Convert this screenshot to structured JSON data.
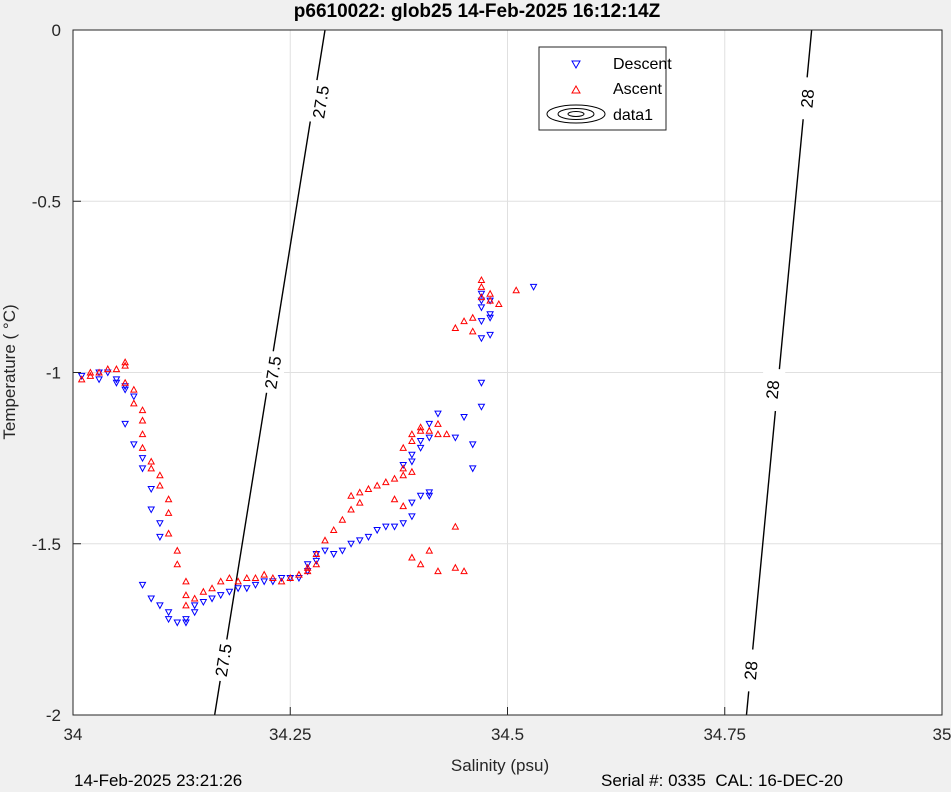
{
  "chart_data": {
    "type": "scatter",
    "title": "p6610022: glob25 14-Feb-2025 16:12:14Z",
    "xlabel": "Salinity (psu)",
    "ylabel": "Temperature (   °C)",
    "xlim": [
      34,
      35
    ],
    "ylim": [
      -2,
      0
    ],
    "xticks": [
      34,
      34.25,
      34.5,
      34.75,
      35
    ],
    "xtick_labels": [
      "34",
      "34.25",
      "34.5",
      "34.75",
      "35"
    ],
    "yticks": [
      0,
      -0.5,
      -1,
      -1.5,
      -2
    ],
    "ytick_labels": [
      "0",
      "-0.5",
      "-1",
      "-1.5",
      "-2"
    ],
    "grid": true,
    "legend_position": "top-right",
    "series": [
      {
        "name": "Descent",
        "color": "#0000ff",
        "marker": "triangle-down",
        "points": [
          [
            34.01,
            -1.01
          ],
          [
            34.03,
            -1.02
          ],
          [
            34.03,
            -1.0
          ],
          [
            34.04,
            -1.0
          ],
          [
            34.05,
            -1.02
          ],
          [
            34.05,
            -1.03
          ],
          [
            34.06,
            -1.04
          ],
          [
            34.06,
            -1.05
          ],
          [
            34.07,
            -1.07
          ],
          [
            34.06,
            -1.15
          ],
          [
            34.07,
            -1.21
          ],
          [
            34.08,
            -1.25
          ],
          [
            34.08,
            -1.28
          ],
          [
            34.09,
            -1.34
          ],
          [
            34.09,
            -1.4
          ],
          [
            34.1,
            -1.44
          ],
          [
            34.1,
            -1.48
          ],
          [
            34.08,
            -1.62
          ],
          [
            34.09,
            -1.66
          ],
          [
            34.1,
            -1.68
          ],
          [
            34.11,
            -1.7
          ],
          [
            34.11,
            -1.72
          ],
          [
            34.12,
            -1.73
          ],
          [
            34.13,
            -1.73
          ],
          [
            34.13,
            -1.72
          ],
          [
            34.14,
            -1.7
          ],
          [
            34.14,
            -1.68
          ],
          [
            34.15,
            -1.67
          ],
          [
            34.16,
            -1.66
          ],
          [
            34.17,
            -1.65
          ],
          [
            34.18,
            -1.64
          ],
          [
            34.19,
            -1.63
          ],
          [
            34.2,
            -1.63
          ],
          [
            34.21,
            -1.62
          ],
          [
            34.22,
            -1.61
          ],
          [
            34.23,
            -1.61
          ],
          [
            34.24,
            -1.6
          ],
          [
            34.25,
            -1.6
          ],
          [
            34.26,
            -1.6
          ],
          [
            34.27,
            -1.58
          ],
          [
            34.27,
            -1.56
          ],
          [
            34.28,
            -1.55
          ],
          [
            34.28,
            -1.53
          ],
          [
            34.29,
            -1.52
          ],
          [
            34.3,
            -1.53
          ],
          [
            34.31,
            -1.52
          ],
          [
            34.32,
            -1.5
          ],
          [
            34.33,
            -1.49
          ],
          [
            34.34,
            -1.48
          ],
          [
            34.35,
            -1.46
          ],
          [
            34.36,
            -1.45
          ],
          [
            34.37,
            -1.45
          ],
          [
            34.38,
            -1.44
          ],
          [
            34.39,
            -1.42
          ],
          [
            34.39,
            -1.38
          ],
          [
            34.4,
            -1.36
          ],
          [
            34.41,
            -1.36
          ],
          [
            34.41,
            -1.35
          ],
          [
            34.38,
            -1.27
          ],
          [
            34.39,
            -1.26
          ],
          [
            34.39,
            -1.24
          ],
          [
            34.4,
            -1.22
          ],
          [
            34.4,
            -1.2
          ],
          [
            34.41,
            -1.19
          ],
          [
            34.41,
            -1.15
          ],
          [
            34.42,
            -1.12
          ],
          [
            34.44,
            -1.19
          ],
          [
            34.45,
            -1.13
          ],
          [
            34.46,
            -1.21
          ],
          [
            34.46,
            -1.28
          ],
          [
            34.47,
            -1.1
          ],
          [
            34.47,
            -1.03
          ],
          [
            34.47,
            -0.9
          ],
          [
            34.47,
            -0.85
          ],
          [
            34.47,
            -0.81
          ],
          [
            34.47,
            -0.79
          ],
          [
            34.47,
            -0.77
          ],
          [
            34.48,
            -0.79
          ],
          [
            34.48,
            -0.83
          ],
          [
            34.48,
            -0.84
          ],
          [
            34.48,
            -0.89
          ],
          [
            34.53,
            -0.75
          ]
        ]
      },
      {
        "name": "Ascent",
        "color": "#ff0000",
        "marker": "triangle-up",
        "points": [
          [
            34.01,
            -1.02
          ],
          [
            34.02,
            -1.01
          ],
          [
            34.02,
            -1.0
          ],
          [
            34.03,
            -1.0
          ],
          [
            34.04,
            -0.99
          ],
          [
            34.05,
            -0.99
          ],
          [
            34.06,
            -0.98
          ],
          [
            34.06,
            -0.97
          ],
          [
            34.06,
            -1.03
          ],
          [
            34.07,
            -1.05
          ],
          [
            34.07,
            -1.09
          ],
          [
            34.08,
            -1.11
          ],
          [
            34.08,
            -1.14
          ],
          [
            34.08,
            -1.18
          ],
          [
            34.08,
            -1.22
          ],
          [
            34.09,
            -1.26
          ],
          [
            34.09,
            -1.28
          ],
          [
            34.1,
            -1.3
          ],
          [
            34.1,
            -1.33
          ],
          [
            34.11,
            -1.37
          ],
          [
            34.11,
            -1.41
          ],
          [
            34.11,
            -1.47
          ],
          [
            34.12,
            -1.52
          ],
          [
            34.12,
            -1.56
          ],
          [
            34.13,
            -1.61
          ],
          [
            34.13,
            -1.65
          ],
          [
            34.13,
            -1.68
          ],
          [
            34.14,
            -1.66
          ],
          [
            34.15,
            -1.64
          ],
          [
            34.16,
            -1.63
          ],
          [
            34.17,
            -1.61
          ],
          [
            34.18,
            -1.6
          ],
          [
            34.19,
            -1.61
          ],
          [
            34.2,
            -1.6
          ],
          [
            34.21,
            -1.6
          ],
          [
            34.22,
            -1.59
          ],
          [
            34.23,
            -1.6
          ],
          [
            34.24,
            -1.61
          ],
          [
            34.25,
            -1.6
          ],
          [
            34.26,
            -1.59
          ],
          [
            34.27,
            -1.58
          ],
          [
            34.27,
            -1.57
          ],
          [
            34.28,
            -1.56
          ],
          [
            34.28,
            -1.53
          ],
          [
            34.29,
            -1.49
          ],
          [
            34.3,
            -1.46
          ],
          [
            34.31,
            -1.43
          ],
          [
            34.32,
            -1.4
          ],
          [
            34.33,
            -1.38
          ],
          [
            34.32,
            -1.36
          ],
          [
            34.33,
            -1.35
          ],
          [
            34.34,
            -1.34
          ],
          [
            34.35,
            -1.33
          ],
          [
            34.36,
            -1.32
          ],
          [
            34.37,
            -1.31
          ],
          [
            34.38,
            -1.3
          ],
          [
            34.38,
            -1.28
          ],
          [
            34.39,
            -1.29
          ],
          [
            34.37,
            -1.37
          ],
          [
            34.38,
            -1.39
          ],
          [
            34.38,
            -1.22
          ],
          [
            34.39,
            -1.2
          ],
          [
            34.39,
            -1.18
          ],
          [
            34.4,
            -1.17
          ],
          [
            34.4,
            -1.16
          ],
          [
            34.41,
            -1.17
          ],
          [
            34.42,
            -1.18
          ],
          [
            34.42,
            -1.15
          ],
          [
            34.43,
            -1.18
          ],
          [
            34.39,
            -1.54
          ],
          [
            34.4,
            -1.56
          ],
          [
            34.41,
            -1.52
          ],
          [
            34.42,
            -1.58
          ],
          [
            34.44,
            -1.45
          ],
          [
            34.44,
            -1.57
          ],
          [
            34.45,
            -1.58
          ],
          [
            34.44,
            -0.87
          ],
          [
            34.45,
            -0.85
          ],
          [
            34.46,
            -0.88
          ],
          [
            34.46,
            -0.84
          ],
          [
            34.47,
            -0.78
          ],
          [
            34.47,
            -0.75
          ],
          [
            34.47,
            -0.73
          ],
          [
            34.48,
            -0.77
          ],
          [
            34.48,
            -0.79
          ],
          [
            34.49,
            -0.8
          ],
          [
            34.51,
            -0.76
          ]
        ]
      }
    ],
    "contour_series_name": "data1",
    "contour_lines": [
      {
        "label": "27.5",
        "points": [
          [
            34.163,
            -2.0
          ],
          [
            34.29,
            0.0
          ]
        ],
        "label_positions": [
          [
            34.173,
            -1.84
          ],
          [
            34.23,
            -1.0
          ],
          [
            34.285,
            -0.21
          ]
        ]
      },
      {
        "label": "28",
        "points": [
          [
            34.775,
            -2.0
          ],
          [
            34.85,
            0.0
          ]
        ],
        "label_positions": [
          [
            34.78,
            -1.87
          ],
          [
            34.805,
            -1.05
          ],
          [
            34.845,
            -0.2
          ]
        ]
      }
    ]
  },
  "footer": {
    "left": "14-Feb-2025 23:21:26",
    "right": "Serial #: 0335  CAL: 16-DEC-20"
  }
}
